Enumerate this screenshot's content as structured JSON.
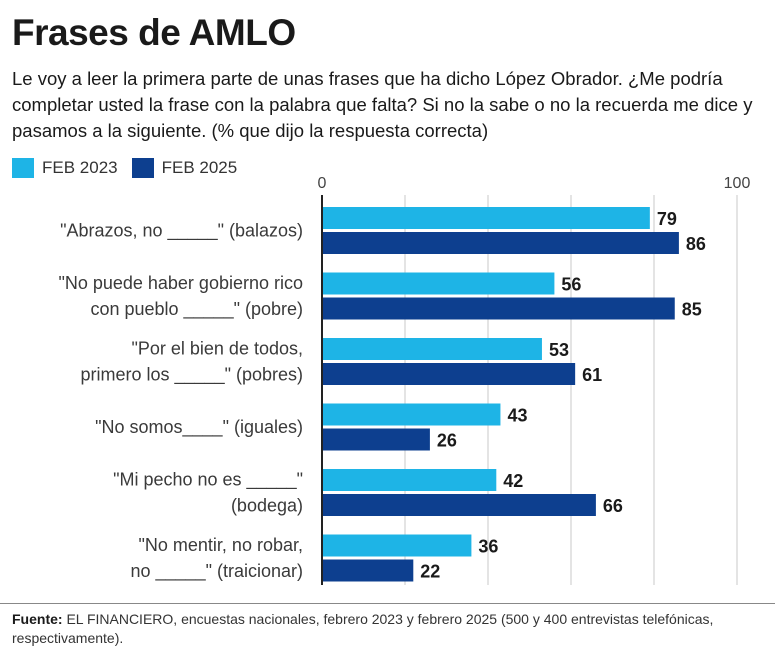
{
  "title": "Frases de AMLO",
  "subtitle": "Le voy a leer la primera parte de unas frases que ha dicho López Obrador. ¿Me podría completar usted la frase con la palabra que falta? Si no la sabe o no la recuerda me dice y pasamos a la siguiente. (% que dijo la respuesta correcta)",
  "footer": {
    "label": "Fuente:",
    "text": " EL FINANCIERO, encuestas nacionales, febrero 2023 y febrero 2025 (500 y 400 entrevistas telefónicas, respectivamente)."
  },
  "chart_data": {
    "type": "bar",
    "orientation": "horizontal",
    "xlim": [
      0,
      100
    ],
    "ticks": [
      0,
      100
    ],
    "grid": true,
    "legend_position": "top-left",
    "categories": [
      [
        "\"Abrazos, no _____\" (balazos)"
      ],
      [
        "\"No puede haber gobierno rico",
        "con pueblo _____\" (pobre)"
      ],
      [
        "\"Por el bien de todos,",
        "primero los _____\" (pobres)"
      ],
      [
        "\"No somos____\"  (iguales)"
      ],
      [
        "\"Mi pecho no es _____\"",
        "(bodega)"
      ],
      [
        "\"No mentir, no robar,",
        "no  _____\" (traicionar)"
      ]
    ],
    "series": [
      {
        "name": "FEB 2023",
        "color": "#1eb4e6",
        "values": [
          79,
          56,
          53,
          43,
          42,
          36
        ]
      },
      {
        "name": "FEB 2025",
        "color": "#0d3f8f",
        "values": [
          86,
          85,
          61,
          26,
          66,
          22
        ]
      }
    ]
  }
}
